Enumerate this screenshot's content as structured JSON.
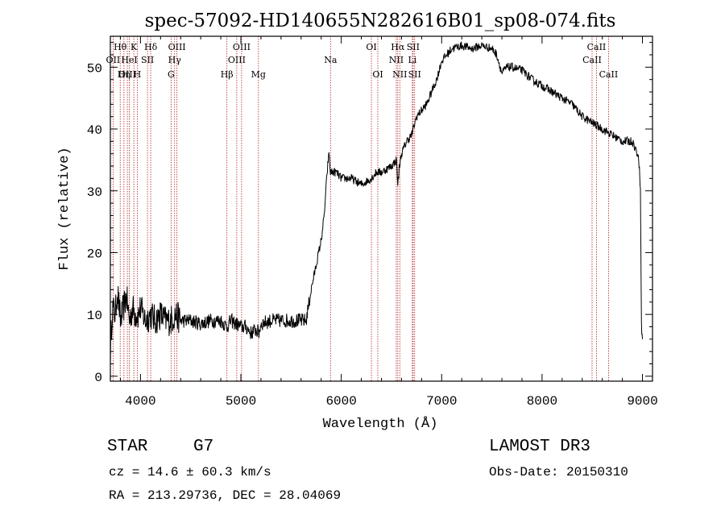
{
  "chart_data": {
    "type": "line",
    "title": "spec-57092-HD140655N282616B01_sp08-074.fits",
    "xlabel": "Wavelength (Å)",
    "ylabel": "Flux (relative)",
    "xlim": [
      3700,
      9100
    ],
    "ylim": [
      -0.8,
      55
    ],
    "xticks": [
      4000,
      5000,
      6000,
      7000,
      8000,
      9000
    ],
    "xtick_labels": [
      "4000",
      "5000",
      "6000",
      "7000",
      "8000",
      "9000"
    ],
    "yticks": [
      0,
      10,
      20,
      30,
      40,
      50
    ],
    "ytick_labels": [
      "0",
      "10",
      "20",
      "30",
      "40",
      "50"
    ],
    "line_color": "#000000",
    "marker_color": "#b22222",
    "series": [
      {
        "name": "flux",
        "anchors": [
          [
            3700,
            4
          ],
          [
            3720,
            11
          ],
          [
            3750,
            10
          ],
          [
            3770,
            14
          ],
          [
            3800,
            9
          ],
          [
            3830,
            11
          ],
          [
            3860,
            13
          ],
          [
            3890,
            9
          ],
          [
            3920,
            11
          ],
          [
            3950,
            10
          ],
          [
            3980,
            10
          ],
          [
            4000,
            11
          ],
          [
            4050,
            9
          ],
          [
            4100,
            10
          ],
          [
            4150,
            9
          ],
          [
            4200,
            10
          ],
          [
            4250,
            9
          ],
          [
            4300,
            9
          ],
          [
            4350,
            10
          ],
          [
            4400,
            9
          ],
          [
            4500,
            9
          ],
          [
            4600,
            8.5
          ],
          [
            4700,
            9
          ],
          [
            4800,
            9
          ],
          [
            4860,
            8
          ],
          [
            4900,
            9
          ],
          [
            4950,
            8.5
          ],
          [
            5000,
            8
          ],
          [
            5050,
            8
          ],
          [
            5100,
            7
          ],
          [
            5150,
            7.5
          ],
          [
            5180,
            7
          ],
          [
            5200,
            8.5
          ],
          [
            5300,
            9
          ],
          [
            5400,
            9
          ],
          [
            5500,
            9
          ],
          [
            5600,
            9
          ],
          [
            5650,
            9
          ],
          [
            5700,
            14
          ],
          [
            5750,
            18
          ],
          [
            5800,
            22
          ],
          [
            5830,
            26
          ],
          [
            5850,
            31
          ],
          [
            5870,
            35
          ],
          [
            5880,
            36
          ],
          [
            5890,
            33
          ],
          [
            5910,
            33
          ],
          [
            5950,
            33
          ],
          [
            6000,
            32
          ],
          [
            6100,
            32
          ],
          [
            6200,
            31
          ],
          [
            6300,
            32
          ],
          [
            6350,
            33
          ],
          [
            6400,
            33
          ],
          [
            6500,
            34
          ],
          [
            6550,
            35
          ],
          [
            6563,
            31
          ],
          [
            6580,
            34
          ],
          [
            6600,
            36
          ],
          [
            6650,
            38
          ],
          [
            6700,
            39
          ],
          [
            6750,
            42
          ],
          [
            6800,
            43
          ],
          [
            6850,
            44
          ],
          [
            6900,
            46
          ],
          [
            6950,
            48
          ],
          [
            7000,
            51
          ],
          [
            7050,
            52
          ],
          [
            7100,
            53
          ],
          [
            7200,
            53.5
          ],
          [
            7300,
            53
          ],
          [
            7400,
            53.5
          ],
          [
            7500,
            53
          ],
          [
            7550,
            52
          ],
          [
            7600,
            49
          ],
          [
            7650,
            50
          ],
          [
            7700,
            50
          ],
          [
            7800,
            49.5
          ],
          [
            7900,
            48
          ],
          [
            8000,
            47
          ],
          [
            8100,
            46
          ],
          [
            8200,
            45
          ],
          [
            8300,
            44
          ],
          [
            8400,
            42
          ],
          [
            8500,
            41
          ],
          [
            8600,
            40
          ],
          [
            8700,
            39
          ],
          [
            8800,
            38
          ],
          [
            8900,
            38
          ],
          [
            8950,
            36
          ],
          [
            8970,
            34
          ],
          [
            8980,
            30
          ],
          [
            8990,
            8
          ],
          [
            9000,
            6
          ]
        ]
      }
    ],
    "lines": [
      {
        "label": "Hθ",
        "wl": 3798,
        "row": 0
      },
      {
        "label": "OII",
        "wl": 3727,
        "row": 1
      },
      {
        "label": "OIII",
        "wl": 3869,
        "row": 2
      },
      {
        "label": "K",
        "wl": 3934,
        "row": 0
      },
      {
        "label": "HeI",
        "wl": 3889,
        "row": 1
      },
      {
        "label": "Hη",
        "wl": 3835,
        "row": 2
      },
      {
        "label": "SII",
        "wl": 4070,
        "row": 1
      },
      {
        "label": "H",
        "wl": 3968,
        "row": 2
      },
      {
        "label": "Hδ",
        "wl": 4102,
        "row": 0
      },
      {
        "label": "OIII",
        "wl": 4363,
        "row": 0
      },
      {
        "label": "Hγ",
        "wl": 4340,
        "row": 1
      },
      {
        "label": "G",
        "wl": 4305,
        "row": 2
      },
      {
        "label": "OIII",
        "wl": 5007,
        "row": 0
      },
      {
        "label": "OIII",
        "wl": 4959,
        "row": 1
      },
      {
        "label": "Hβ",
        "wl": 4861,
        "row": 2
      },
      {
        "label": "Mg",
        "wl": 5175,
        "row": 2
      },
      {
        "label": "Na",
        "wl": 5893,
        "row": 1
      },
      {
        "label": "OI",
        "wl": 6300,
        "row": 0
      },
      {
        "label": "OI",
        "wl": 6364,
        "row": 2
      },
      {
        "label": "Hα",
        "wl": 6563,
        "row": 0
      },
      {
        "label": "NII",
        "wl": 6548,
        "row": 1
      },
      {
        "label": "NII",
        "wl": 6583,
        "row": 2
      },
      {
        "label": "SII",
        "wl": 6716,
        "row": 0
      },
      {
        "label": "Li",
        "wl": 6708,
        "row": 1
      },
      {
        "label": "SII",
        "wl": 6731,
        "row": 2
      },
      {
        "label": "CaII",
        "wl": 8542,
        "row": 0
      },
      {
        "label": "CaII",
        "wl": 8498,
        "row": 1
      },
      {
        "label": "CaII",
        "wl": 8662,
        "row": 2
      }
    ]
  },
  "footer": {
    "object_class": "STAR",
    "subclass": "G7",
    "survey": "LAMOST DR3",
    "cz": "cz = 14.6 ± 60.3 km/s",
    "obs_date": "Obs-Date: 20150310",
    "coords": "RA = 213.29736, DEC =  28.04069"
  }
}
